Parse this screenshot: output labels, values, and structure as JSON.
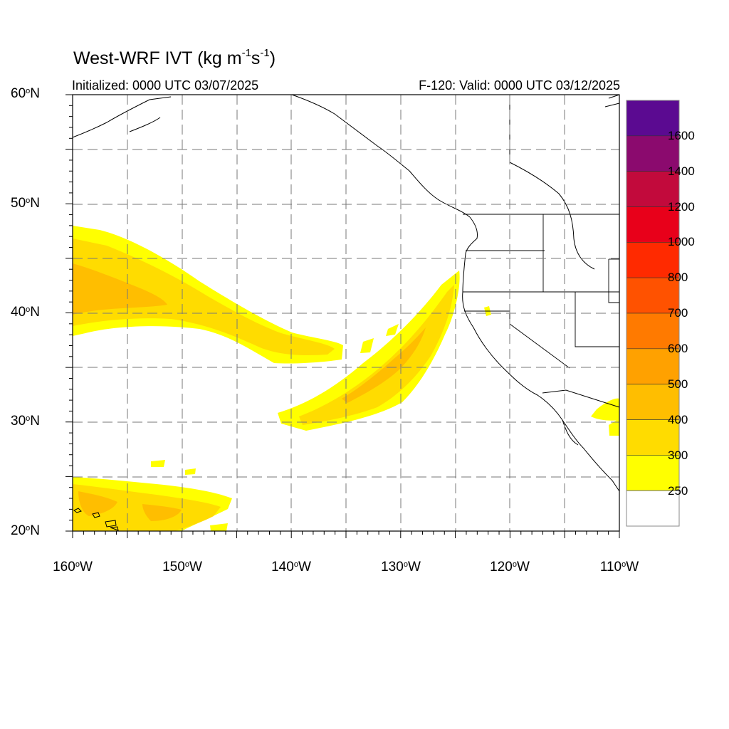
{
  "title": {
    "main": "West-WRF IVT (kg m",
    "exp1": "-1",
    "mid": "s",
    "exp2": "-1",
    "close": ")"
  },
  "initialized": "Initialized: 0000 UTC 03/07/2025",
  "valid": "F-120: Valid: 0000 UTC 03/12/2025",
  "degree_symbol": "o",
  "lat_axis": [
    {
      "value": "60",
      "hemi": "N"
    },
    {
      "value": "50",
      "hemi": "N"
    },
    {
      "value": "40",
      "hemi": "N"
    },
    {
      "value": "30",
      "hemi": "N"
    },
    {
      "value": "20",
      "hemi": "N"
    }
  ],
  "lon_axis": [
    {
      "value": "160",
      "hemi": "W"
    },
    {
      "value": "150",
      "hemi": "W"
    },
    {
      "value": "140",
      "hemi": "W"
    },
    {
      "value": "130",
      "hemi": "W"
    },
    {
      "value": "120",
      "hemi": "W"
    },
    {
      "value": "110",
      "hemi": "W"
    }
  ],
  "colorbar": {
    "labels": [
      "1600",
      "1400",
      "1200",
      "1000",
      "800",
      "700",
      "600",
      "500",
      "400",
      "300",
      "250"
    ],
    "colors": [
      "#5b0a91",
      "#8b0a6e",
      "#c20a3c",
      "#e8001a",
      "#ff2a00",
      "#ff5200",
      "#ff7a00",
      "#ffa100",
      "#ffbe00",
      "#ffdc00",
      "#ffff00",
      "#ffffff"
    ]
  },
  "map": {
    "lat_range": [
      20,
      60
    ],
    "lon_range": [
      -160,
      -110
    ],
    "grid": "dashed",
    "ivt_bands": [
      "#ffff00",
      "#ffdc00",
      "#ffbe00"
    ]
  }
}
